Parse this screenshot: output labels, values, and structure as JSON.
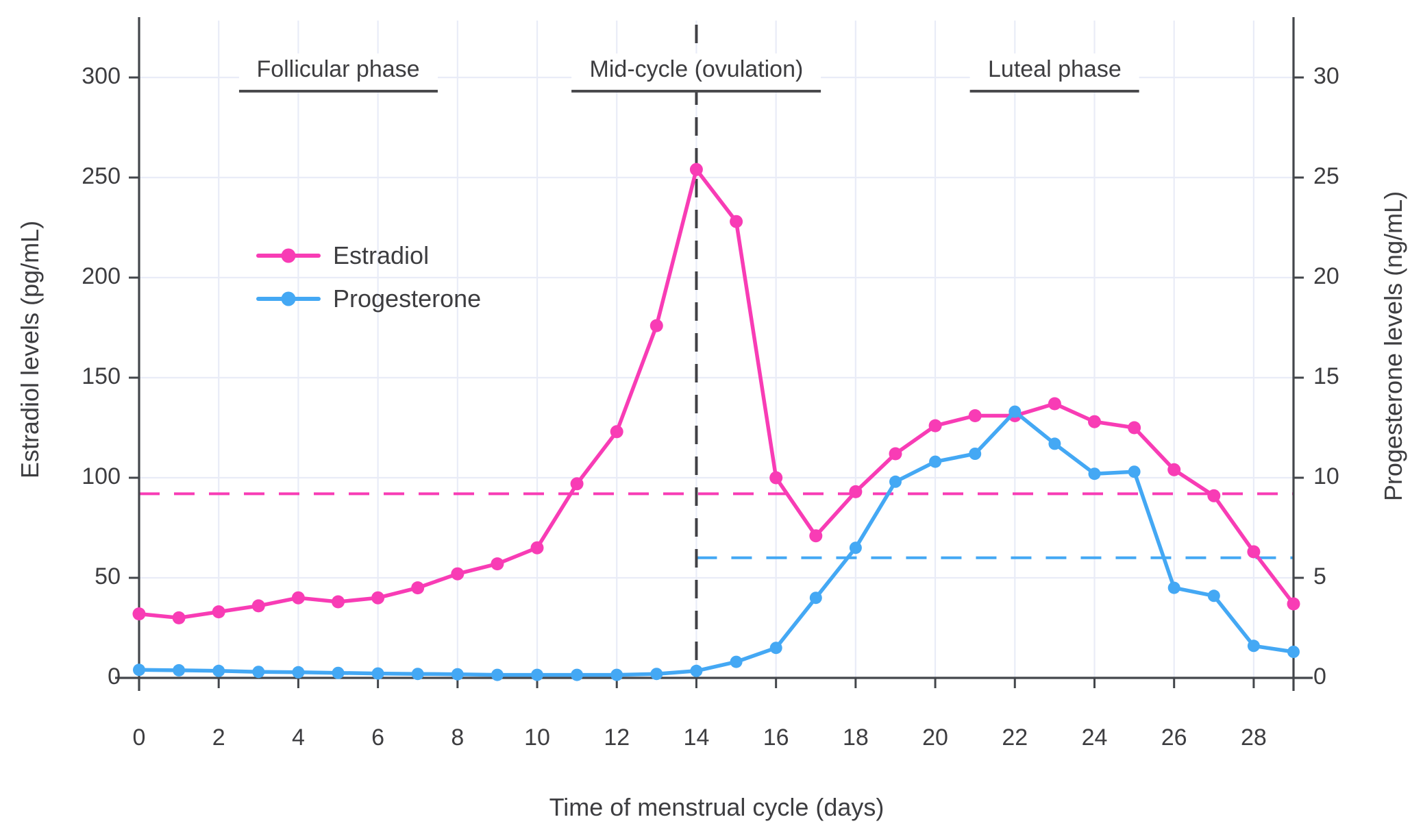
{
  "chart_data": {
    "type": "line",
    "title": "",
    "xlabel": "Time of menstrual cycle (days)",
    "ylabel_left": "Estradiol levels (pg/mL)",
    "ylabel_right": "Progesterone levels (ng/mL)",
    "x": [
      0,
      1,
      2,
      3,
      4,
      5,
      6,
      7,
      8,
      9,
      10,
      11,
      12,
      13,
      14,
      15,
      16,
      17,
      18,
      19,
      20,
      21,
      22,
      23,
      24,
      25,
      26,
      27,
      28,
      29
    ],
    "series": [
      {
        "name": "Estradiol",
        "axis": "left",
        "units": "pg/mL",
        "color": "#f83cb5",
        "values": [
          32,
          30,
          33,
          36,
          40,
          38,
          40,
          45,
          52,
          57,
          65,
          97,
          123,
          176,
          254,
          228,
          100,
          71,
          93,
          112,
          126,
          131,
          131,
          137,
          128,
          125,
          104,
          91,
          63,
          37
        ]
      },
      {
        "name": "Progesterone",
        "axis": "right",
        "units": "ng/mL",
        "color": "#44a8f4",
        "values": [
          0.4,
          0.38,
          0.35,
          0.3,
          0.28,
          0.25,
          0.22,
          0.2,
          0.18,
          0.15,
          0.15,
          0.15,
          0.15,
          0.2,
          0.35,
          0.8,
          1.5,
          4.0,
          6.5,
          9.8,
          10.8,
          11.2,
          13.3,
          11.7,
          10.2,
          10.3,
          4.5,
          4.1,
          1.6,
          1.3
        ]
      }
    ],
    "x_ticks": [
      0,
      2,
      4,
      6,
      8,
      10,
      12,
      14,
      16,
      18,
      20,
      22,
      24,
      26,
      28
    ],
    "left_ticks": [
      0,
      50,
      100,
      150,
      200,
      250,
      300
    ],
    "right_ticks": [
      0,
      5,
      10,
      15,
      20,
      25,
      30
    ],
    "left_range": [
      0,
      300
    ],
    "right_range": [
      0,
      30
    ],
    "x_range": [
      0,
      29
    ],
    "grid": true,
    "legend_position": "upper-left-inside",
    "reference_lines": [
      {
        "name": "estradiol-reference",
        "orientation": "horizontal",
        "axis": "left",
        "value": 92,
        "x_start": 0,
        "x_end": 29,
        "style": "dashed",
        "color": "#f83cb5"
      },
      {
        "name": "progesterone-reference",
        "orientation": "horizontal",
        "axis": "right",
        "value": 6,
        "x_start": 14,
        "x_end": 29,
        "style": "dashed",
        "color": "#44a8f4"
      },
      {
        "name": "ovulation-day-line",
        "orientation": "vertical",
        "x": 14,
        "style": "dashed",
        "color": "#414146"
      }
    ],
    "annotations": [
      {
        "label": "Follicular phase",
        "x_center_day": 5
      },
      {
        "label": "Mid-cycle (ovulation)",
        "x_center_day": 14
      },
      {
        "label": "Luteal phase",
        "x_center_day": 23
      }
    ]
  },
  "colors": {
    "estradiol": "#f83cb5",
    "progesterone": "#44a8f4",
    "grid": "#e9ecf7",
    "spine": "#43464b",
    "text": "#3d3d40",
    "dashed_vertical": "#414146",
    "background": "#ffffff"
  }
}
